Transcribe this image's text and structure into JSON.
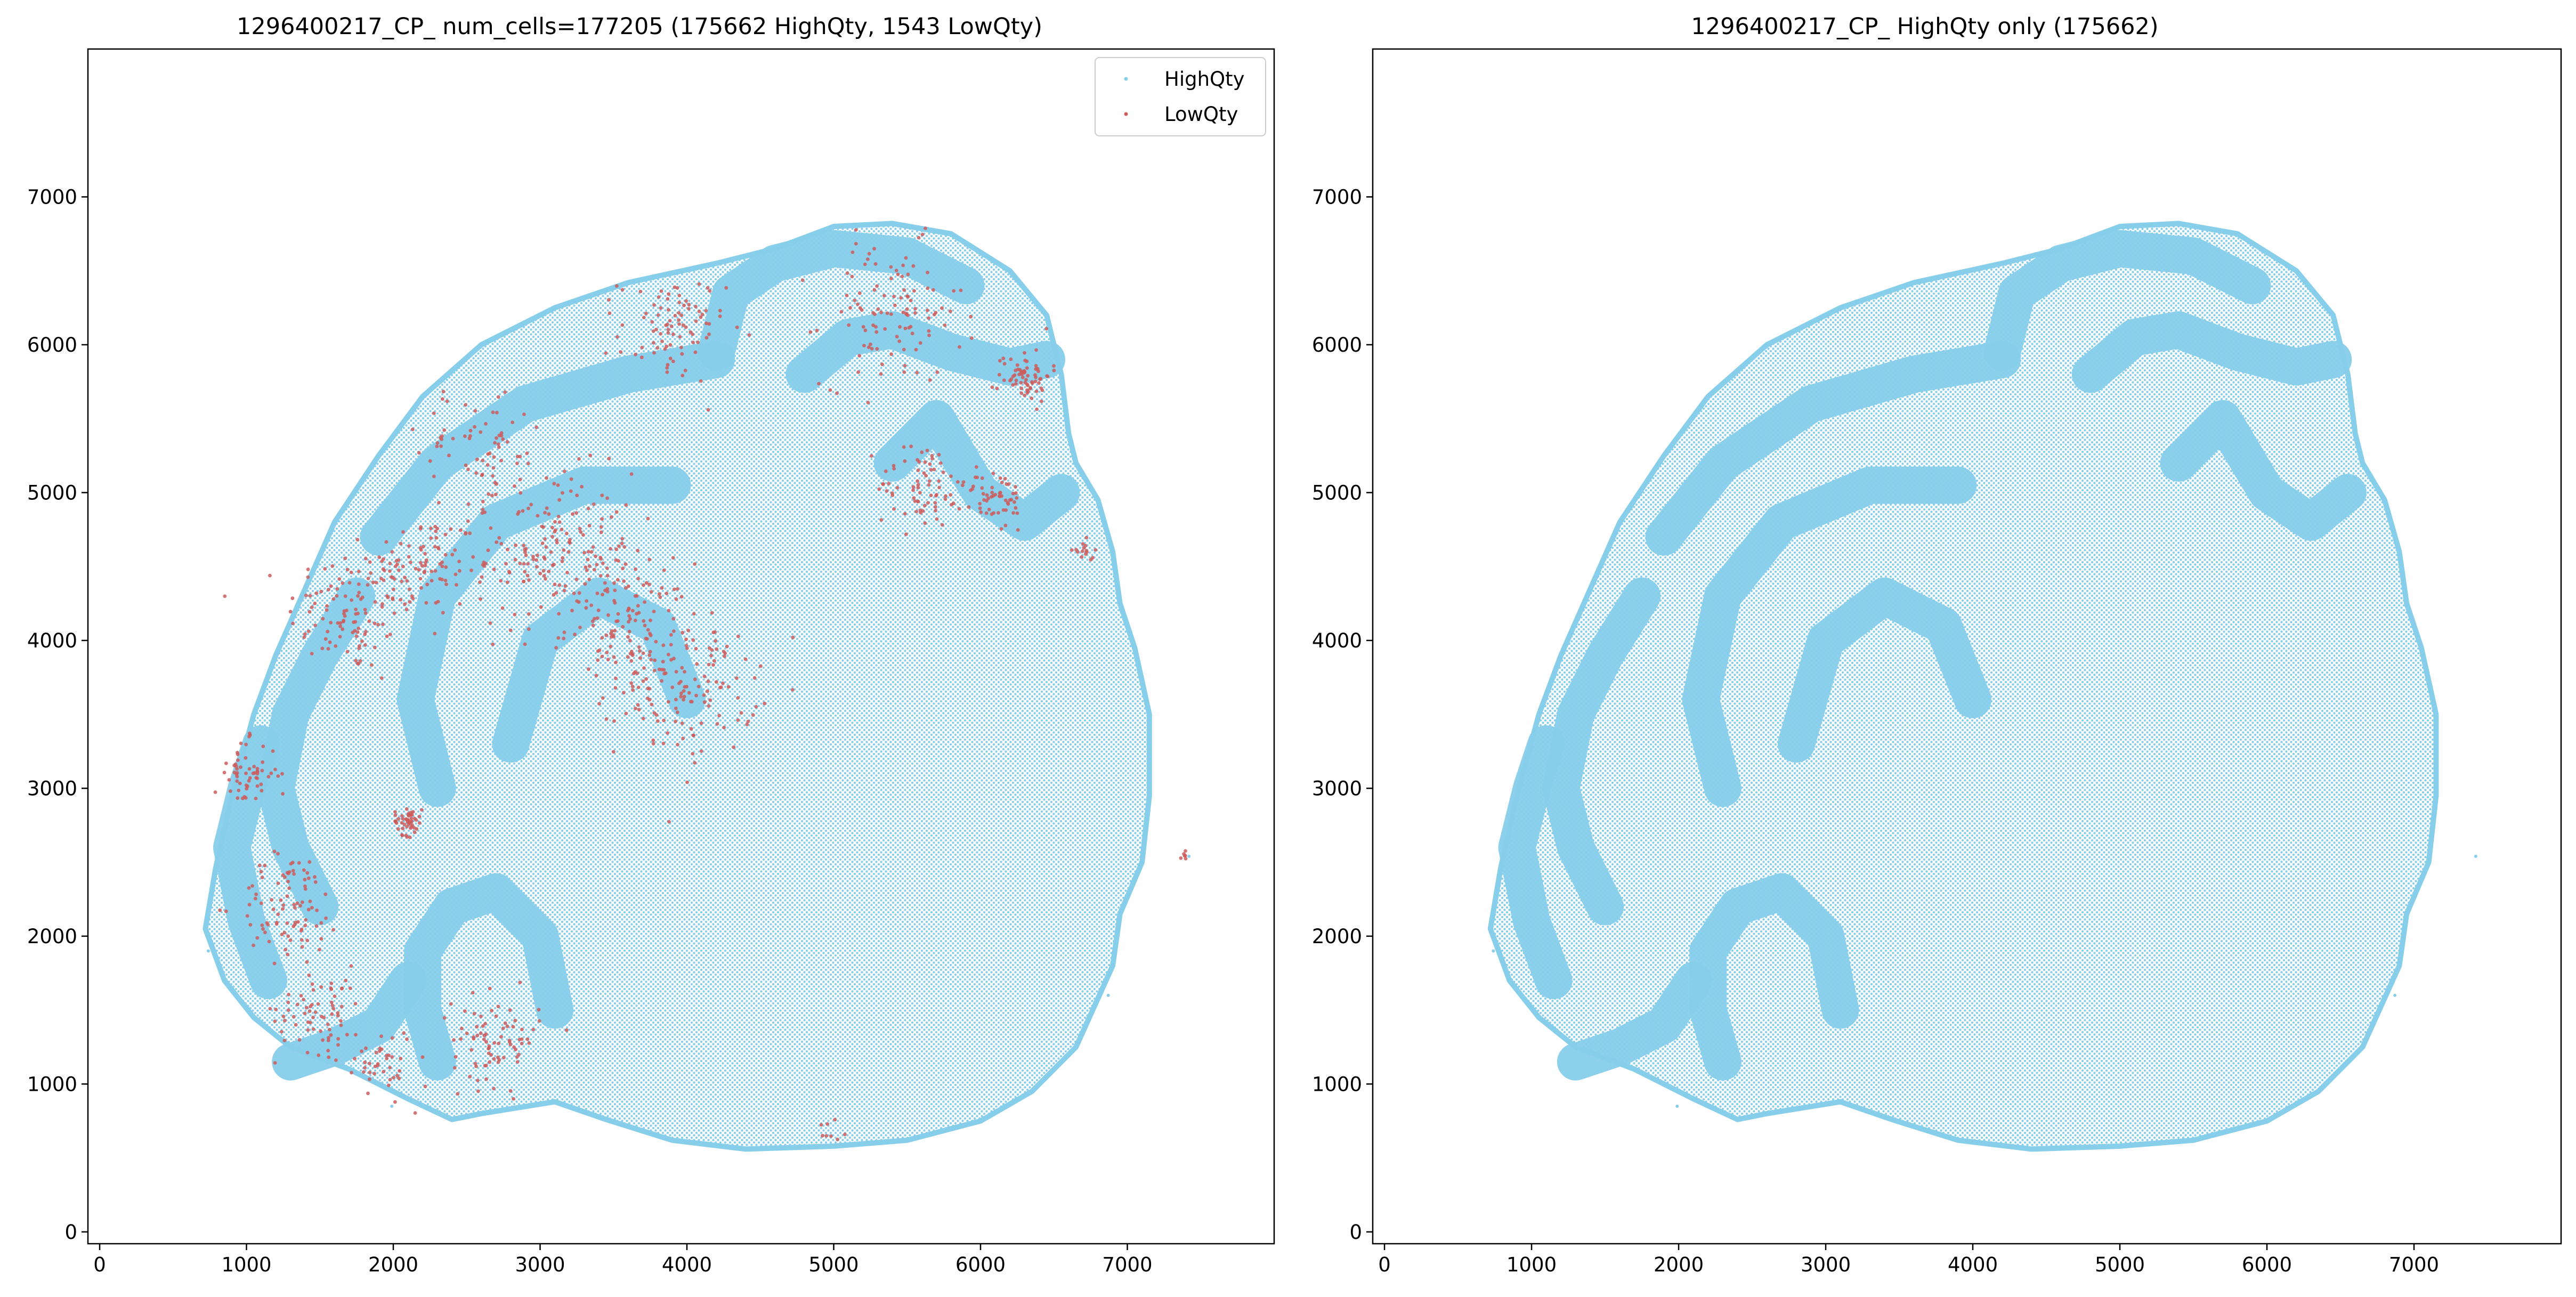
{
  "chart_data": [
    {
      "type": "scatter",
      "title": "1296400217_CP_ num_cells=177205 (175662 HighQty, 1543 LowQty)",
      "xlim": [
        -80,
        8000
      ],
      "ylim": [
        -80,
        8000
      ],
      "x_ticks": [
        0,
        1000,
        2000,
        3000,
        4000,
        5000,
        6000,
        7000
      ],
      "y_ticks": [
        0,
        1000,
        2000,
        3000,
        4000,
        5000,
        6000,
        7000
      ],
      "grid": false,
      "legend": {
        "placement": "top-right",
        "entries": [
          "HighQty",
          "LowQty"
        ]
      },
      "series": [
        {
          "name": "HighQty",
          "color": "#87CEEB",
          "count": 175662
        },
        {
          "name": "LowQty",
          "color": "#CD5C5C",
          "count": 1543
        }
      ]
    },
    {
      "type": "scatter",
      "title": "1296400217_CP_ HighQty only (175662)",
      "xlim": [
        -80,
        8000
      ],
      "ylim": [
        -80,
        8000
      ],
      "x_ticks": [
        0,
        1000,
        2000,
        3000,
        4000,
        5000,
        6000,
        7000
      ],
      "y_ticks": [
        0,
        1000,
        2000,
        3000,
        4000,
        5000,
        6000,
        7000
      ],
      "grid": false,
      "series": [
        {
          "name": "HighQty",
          "color": "#87CEEB",
          "count": 175662
        }
      ]
    }
  ]
}
